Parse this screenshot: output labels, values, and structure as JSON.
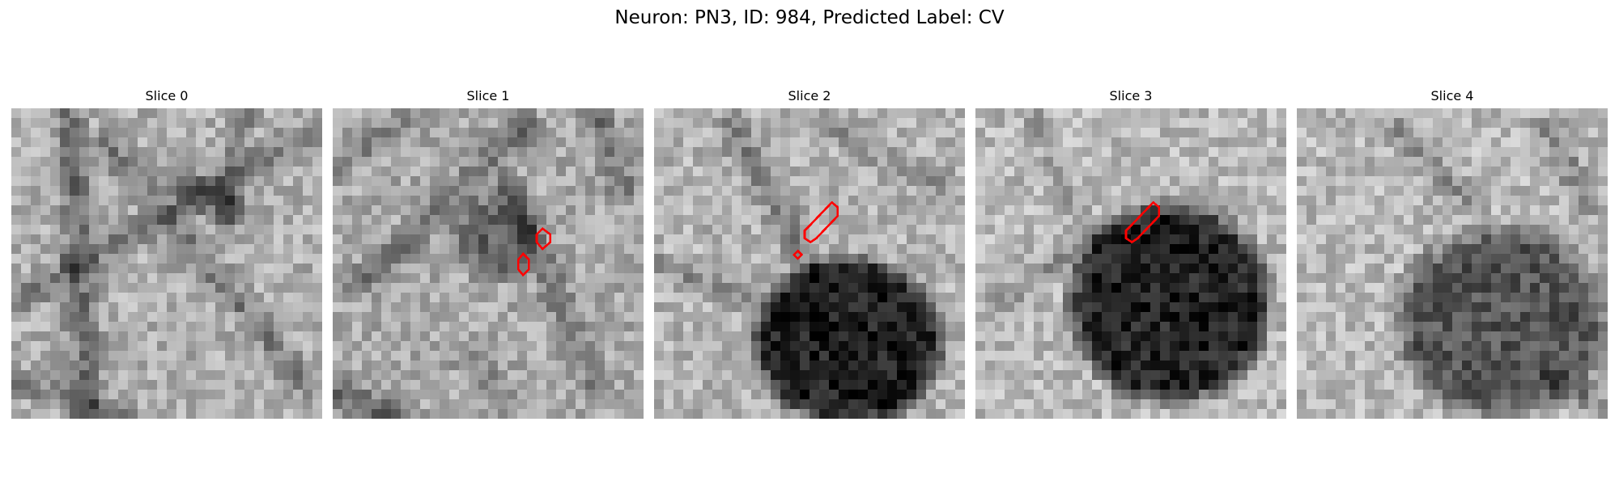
{
  "figure": {
    "title": "Neuron: PN3, ID: 984, Predicted Label: CV"
  },
  "panels": [
    {
      "title": "Slice 0"
    },
    {
      "title": "Slice 1"
    },
    {
      "title": "Slice 2"
    },
    {
      "title": "Slice 3"
    },
    {
      "title": "Slice 4"
    }
  ],
  "colors": {
    "contour": "#ff0000",
    "background": "#ffffff"
  }
}
